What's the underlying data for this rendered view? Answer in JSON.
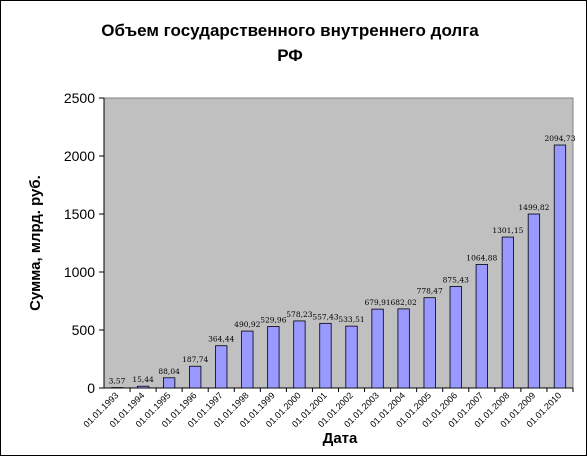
{
  "chart_data": {
    "type": "bar",
    "title_line1": "Объем государственного внутреннего долга",
    "title_line2": "РФ",
    "xlabel": "Дата",
    "ylabel": "Сумма, млрд. руб.",
    "ylim": [
      0,
      2500
    ],
    "yticks": [
      "0",
      "500",
      "1000",
      "1500",
      "2000",
      "2500"
    ],
    "categories": [
      "01.01.1993",
      "01.01.1994",
      "01.01.1995",
      "01.01.1996",
      "01.01.1997",
      "01.01.1998",
      "01.01.1999",
      "01.01.2000",
      "01.01.2001",
      "01.01.2002",
      "01.01.2003",
      "01.01.2004",
      "01.01.2005",
      "01.01.2006",
      "01.01.2007",
      "01.01.2008",
      "01.01.2009",
      "01.01.2010"
    ],
    "values": [
      3.57,
      15.44,
      88.04,
      187.74,
      364.44,
      490.92,
      529.96,
      578.23,
      557.43,
      533.51,
      679.91,
      682.02,
      778.47,
      875.43,
      1064.88,
      1301.15,
      1499.82,
      2094.73
    ],
    "data_labels": [
      "3,57",
      "15,44",
      "88,04",
      "187,74",
      "364,44",
      "490,92",
      "529,96",
      "578,23",
      "557,43",
      "533,51",
      "679,91",
      "682,02",
      "778,47",
      "875,43",
      "1064,88",
      "1301,15",
      "1499,82",
      "2094,73"
    ],
    "grid": false,
    "legend": "none",
    "colors": {
      "plot_background": "#c0c0c0",
      "bar_fill": "#9999ff",
      "bar_stroke": "#000000",
      "axis": "#000000"
    }
  }
}
